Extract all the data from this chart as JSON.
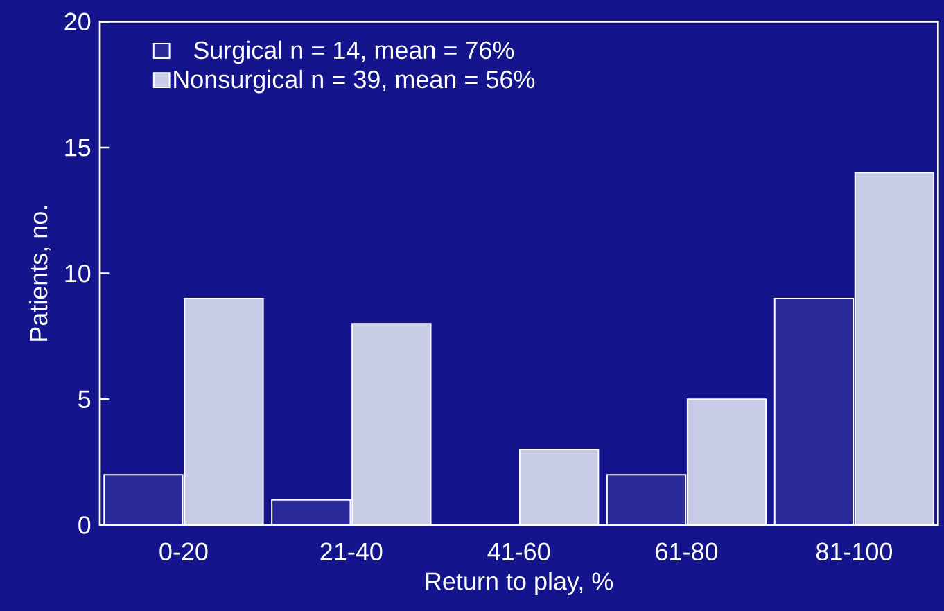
{
  "chart_data": {
    "type": "bar",
    "xlabel": "Return to play, %",
    "ylabel": "Patients, no.",
    "categories": [
      "0-20",
      "21-40",
      "41-60",
      "61-80",
      "81-100"
    ],
    "series": [
      {
        "name": "Surgical n = 14, mean = 76%",
        "color": "#2a2a9a",
        "values": [
          2,
          1,
          0,
          2,
          9
        ]
      },
      {
        "name": "Nonsurgical n = 39, mean = 56%",
        "color": "#c8cce6",
        "values": [
          9,
          8,
          3,
          5,
          14
        ]
      }
    ],
    "ylim": [
      0,
      20
    ],
    "yticks": [
      0,
      5,
      10,
      15,
      20
    ],
    "legend": "top left",
    "grid": false
  }
}
